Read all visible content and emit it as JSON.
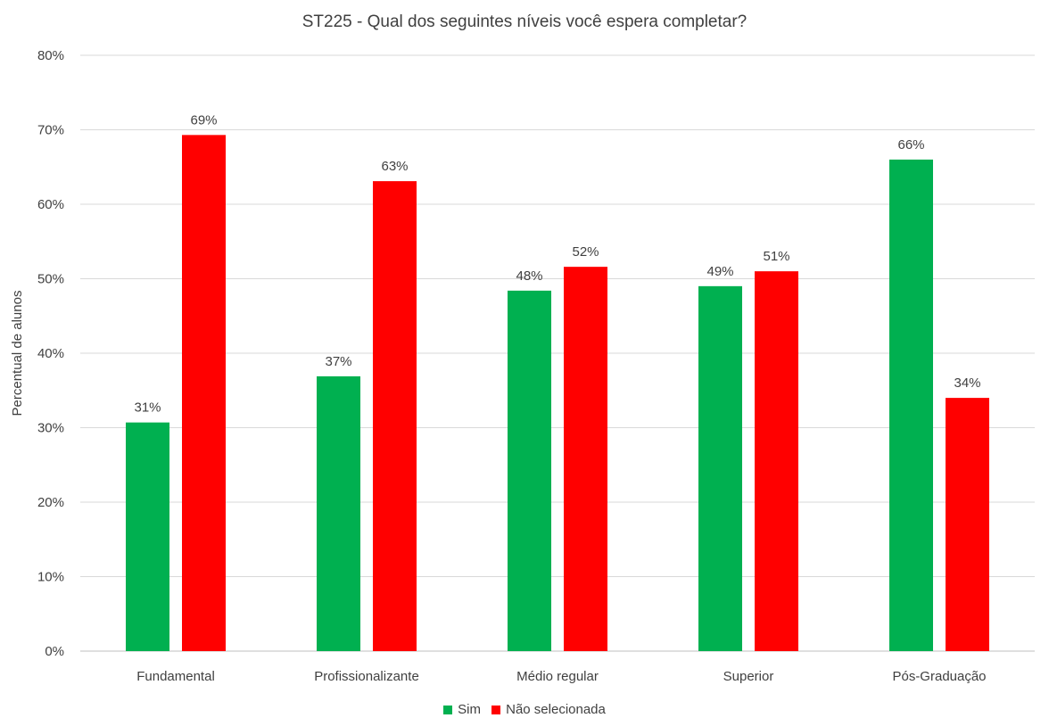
{
  "chart_data": {
    "type": "bar",
    "title": "ST225 - Qual dos seguintes níveis você espera completar?",
    "ylabel": "Percentual de alunos",
    "xlabel": "",
    "ylim": [
      0,
      80
    ],
    "yticks": [
      0,
      10,
      20,
      30,
      40,
      50,
      60,
      70,
      80
    ],
    "ytick_labels": [
      "0%",
      "10%",
      "20%",
      "30%",
      "40%",
      "50%",
      "60%",
      "70%",
      "80%"
    ],
    "grid": true,
    "legend_position": "bottom",
    "categories": [
      "Fundamental",
      "Profissionalizante",
      "Médio regular",
      "Superior",
      "Pós-Graduação"
    ],
    "series": [
      {
        "name": "Sim",
        "color": "#00b050",
        "values": [
          30.7,
          36.9,
          48.4,
          49.0,
          66.0
        ],
        "labels": [
          "31%",
          "37%",
          "48%",
          "49%",
          "66%"
        ]
      },
      {
        "name": "Não selecionada",
        "color": "#ff0000",
        "values": [
          69.3,
          63.1,
          51.6,
          51.0,
          34.0
        ],
        "labels": [
          "69%",
          "63%",
          "52%",
          "51%",
          "34%"
        ]
      }
    ]
  }
}
